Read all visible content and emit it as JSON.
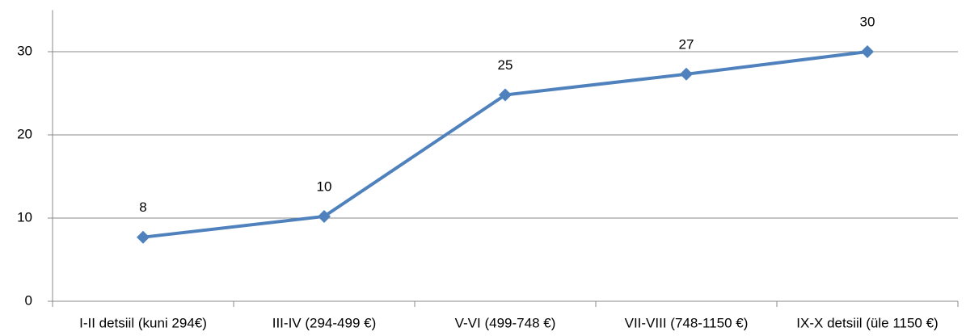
{
  "chart_data": {
    "type": "line",
    "categories": [
      "I-II detsiil (kuni 294€)",
      "III-IV (294-499 €)",
      "V-VI (499-748 €)",
      "VII-VIII (748-1150 €)",
      "IX-X detsiil (üle 1150 €)"
    ],
    "values": [
      7.7,
      10.2,
      24.8,
      27.3,
      30
    ],
    "value_labels": [
      "8",
      "10",
      "25",
      "27",
      "30"
    ],
    "color": "#4f81bd",
    "ylim": [
      0,
      35
    ],
    "yticks": [
      0,
      10,
      20,
      30
    ],
    "grid": true
  }
}
